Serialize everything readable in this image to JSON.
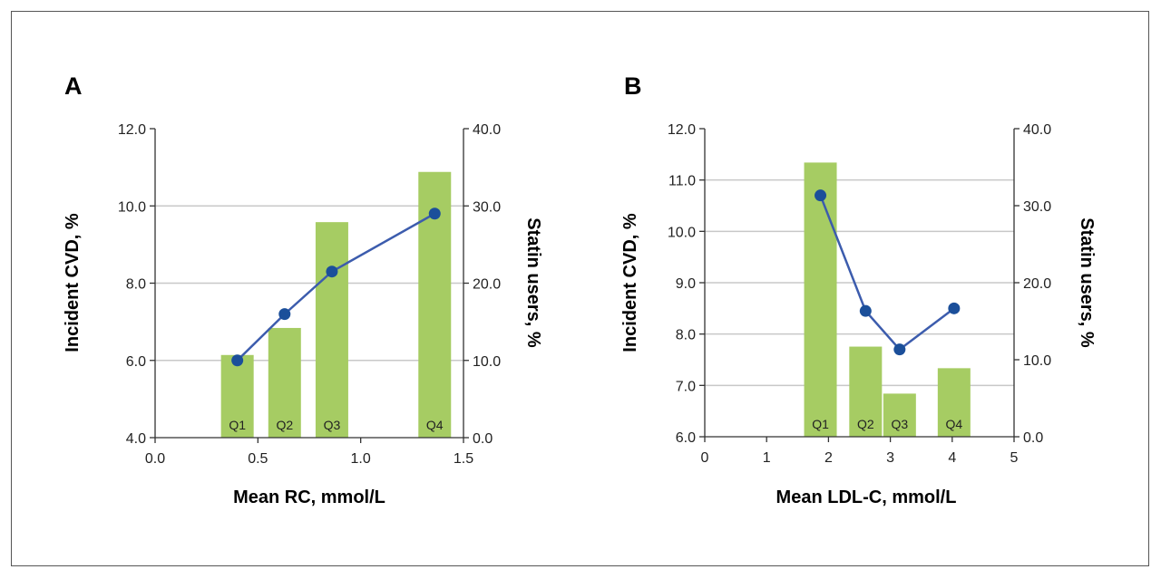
{
  "colors": {
    "bar": "#a6cc63",
    "line": "#3c5cad",
    "marker": "#1b4f9a",
    "grid": "#c8c8c8",
    "axis": "#333333"
  },
  "chart_data": [
    {
      "panel": "A",
      "type": "bar+line",
      "xlabel": "Mean RC, mmol/L",
      "ylabel_left": "Incident CVD, %",
      "ylabel_right": "Statin users, %",
      "xlim": [
        0.0,
        1.5
      ],
      "xticks": [
        "0.0",
        "0.5",
        "1.0",
        "1.5"
      ],
      "ylim_left": [
        4.0,
        12.0
      ],
      "yticks_left": [
        "4.0",
        "6.0",
        "8.0",
        "10.0",
        "12.0"
      ],
      "ylim_right": [
        0.0,
        40.0
      ],
      "yticks_right": [
        "0.0",
        "10.0",
        "20.0",
        "30.0",
        "40.0"
      ],
      "grid": true,
      "bars": {
        "axis": "right",
        "categories": [
          "Q1",
          "Q2",
          "Q3",
          "Q4"
        ],
        "x": [
          0.4,
          0.63,
          0.86,
          1.36
        ],
        "values": [
          10.7,
          14.2,
          27.9,
          34.4
        ]
      },
      "line": {
        "axis": "left",
        "x": [
          0.4,
          0.63,
          0.86,
          1.36
        ],
        "values": [
          6.0,
          7.2,
          8.3,
          9.8
        ]
      }
    },
    {
      "panel": "B",
      "type": "bar+line",
      "xlabel": "Mean LDL-C, mmol/L",
      "ylabel_left": "Incident CVD, %",
      "ylabel_right": "Statin users, %",
      "xlim": [
        0,
        5
      ],
      "xticks": [
        "0",
        "1",
        "2",
        "3",
        "4",
        "5"
      ],
      "ylim_left": [
        6.0,
        12.0
      ],
      "yticks_left": [
        "6.0",
        "7.0",
        "8.0",
        "9.0",
        "10.0",
        "11.0",
        "12.0"
      ],
      "ylim_right": [
        0.0,
        40.0
      ],
      "yticks_right": [
        "0.0",
        "10.0",
        "20.0",
        "30.0",
        "40.0"
      ],
      "grid": true,
      "bars": {
        "axis": "right",
        "categories": [
          "Q1",
          "Q2",
          "Q3",
          "Q4"
        ],
        "x": [
          1.87,
          2.6,
          3.15,
          4.03
        ],
        "values": [
          35.6,
          11.7,
          5.6,
          8.9
        ]
      },
      "line": {
        "axis": "left",
        "x": [
          1.87,
          2.6,
          3.15,
          4.03
        ],
        "values": [
          10.7,
          8.45,
          7.7,
          8.5
        ]
      }
    }
  ]
}
